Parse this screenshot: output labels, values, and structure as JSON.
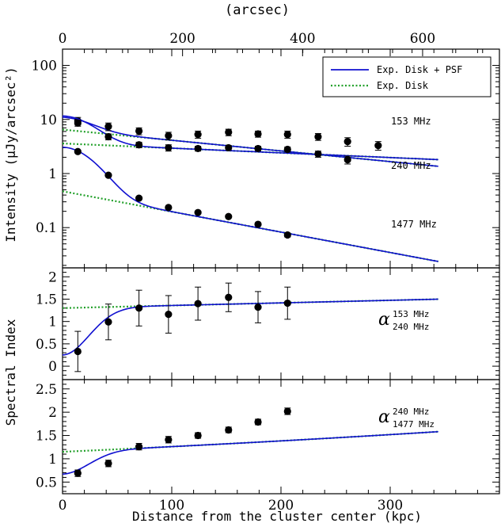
{
  "chart_data": [
    {
      "type": "line",
      "panel": "intensity",
      "ylabel": "Intensity (µJy/arcsec²)",
      "yscale": "log",
      "ylim": [
        0.018,
        200
      ],
      "xlim": [
        0,
        400
      ],
      "top_axis_label": "(arcsec)",
      "top_axis_ticks": [
        "0",
        "200",
        "400",
        "600"
      ],
      "y_tick_labels": [
        "100",
        "10",
        "1",
        "0.1"
      ],
      "legend": {
        "placement": "top-right",
        "entries": [
          "Exp. Disk + PSF",
          "Exp. Disk"
        ]
      },
      "annotations": [
        "153 MHz",
        "240 MHz",
        "1477 MHz"
      ],
      "series": [
        {
          "name": "153 MHz",
          "x": [
            14,
            42,
            70,
            97,
            124,
            152,
            179,
            206,
            234,
            261,
            289
          ],
          "y": [
            9.4,
            7.4,
            6.1,
            5.0,
            5.3,
            5.8,
            5.4,
            5.3,
            4.8,
            3.9,
            3.3
          ],
          "err": [
            1.5,
            1.2,
            0.9,
            0.8,
            0.8,
            0.8,
            0.7,
            0.8,
            0.7,
            0.7,
            0.6
          ],
          "disk_central": 6.5,
          "disk_scale_kpc": 220,
          "psf_amp": 4.5,
          "psf_width": 24
        },
        {
          "name": "240 MHz",
          "x": [
            14,
            42,
            70,
            97,
            124,
            152,
            179,
            206,
            234,
            261
          ],
          "y": [
            8.6,
            4.8,
            3.4,
            3.0,
            2.9,
            3.0,
            2.9,
            2.8,
            2.3,
            1.8
          ],
          "err": [
            1.1,
            0.6,
            0.4,
            0.4,
            0.3,
            0.3,
            0.3,
            0.3,
            0.3,
            0.3
          ],
          "disk_central": 3.6,
          "disk_scale_kpc": 500,
          "psf_amp": 8.0,
          "psf_width": 24
        },
        {
          "name": "1477 MHz",
          "x": [
            14,
            42,
            70,
            97,
            124,
            152,
            179,
            206
          ],
          "y": [
            2.55,
            0.93,
            0.35,
            0.235,
            0.19,
            0.16,
            0.115,
            0.073
          ],
          "err": [
            0.15,
            0.05,
            0.02,
            0.012,
            0.01,
            0.008,
            0.007,
            0.006
          ],
          "disk_central": 0.47,
          "disk_scale_kpc": 115,
          "psf_amp": 2.6,
          "psf_width": 24
        }
      ]
    },
    {
      "type": "line",
      "panel": "spectral-index-153-240",
      "ylim": [
        -0.3,
        2.2
      ],
      "xlim": [
        0,
        400
      ],
      "y_tick_labels": [
        "2",
        "1.5",
        "1",
        "0.5",
        "0"
      ],
      "y_ticks": [
        2,
        1.5,
        1,
        0.5,
        0
      ],
      "annotation": {
        "base": "α",
        "sup": "153 MHz",
        "sub": "240 MHz"
      },
      "series": [
        {
          "name": "α 153/240",
          "x": [
            14,
            42,
            70,
            97,
            124,
            152,
            179,
            206
          ],
          "y": [
            0.33,
            0.99,
            1.3,
            1.16,
            1.4,
            1.54,
            1.32,
            1.41
          ],
          "err": [
            0.45,
            0.4,
            0.4,
            0.42,
            0.37,
            0.32,
            0.35,
            0.36
          ]
        }
      ]
    },
    {
      "type": "line",
      "panel": "spectral-index-240-1477",
      "ylim": [
        0.25,
        2.7
      ],
      "xlim": [
        0,
        400
      ],
      "xlabel": "Distance from the cluster center (kpc)",
      "x_tick_labels": [
        "0",
        "100",
        "200",
        "300"
      ],
      "x_ticks": [
        0,
        100,
        200,
        300
      ],
      "y_tick_labels": [
        "2.5",
        "2",
        "1.5",
        "1",
        "0.5"
      ],
      "y_ticks": [
        2.5,
        2,
        1.5,
        1,
        0.5
      ],
      "annotation": {
        "base": "α",
        "sup": "240 MHz",
        "sub": "1477 MHz"
      },
      "series": [
        {
          "name": "α 240/1477",
          "x": [
            14,
            42,
            70,
            97,
            124,
            152,
            179,
            206
          ],
          "y": [
            0.69,
            0.9,
            1.26,
            1.41,
            1.5,
            1.62,
            1.79,
            2.02
          ],
          "err": [
            0.07,
            0.07,
            0.07,
            0.07,
            0.06,
            0.06,
            0.06,
            0.07
          ]
        }
      ]
    }
  ],
  "shared_ylabel_lower": "Spectral Index",
  "colors": {
    "model": "#1010d0",
    "disk": "#22a02a",
    "points": "#000000"
  }
}
